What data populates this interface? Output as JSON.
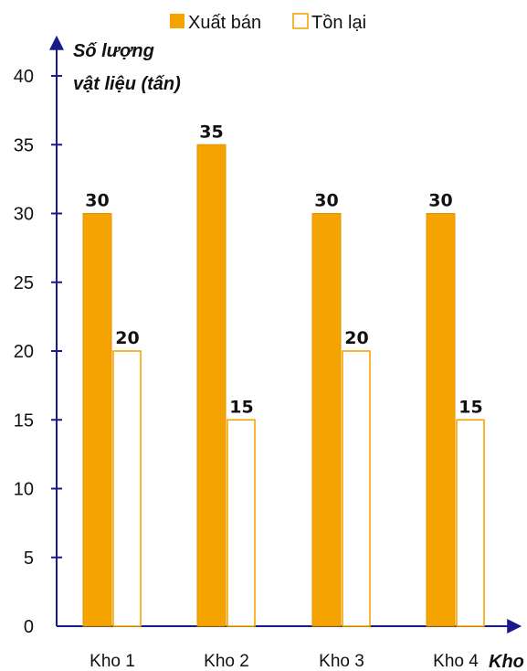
{
  "chart_data": {
    "type": "bar",
    "categories": [
      "Kho 1",
      "Kho 2",
      "Kho 3",
      "Kho 4"
    ],
    "series": [
      {
        "name": "Xuất bán",
        "values": [
          30,
          35,
          30,
          30
        ],
        "color": "#f5a300",
        "style": "filled"
      },
      {
        "name": "Tồn lại",
        "values": [
          20,
          15,
          20,
          15
        ],
        "color": "#f5a300",
        "style": "outline"
      }
    ],
    "ylabel_lines": [
      "Số lượng",
      "vật liệu (tấn)"
    ],
    "xlabel": "Kho",
    "ylim": [
      0,
      40
    ],
    "yticks": [
      0,
      5,
      10,
      15,
      20,
      25,
      30,
      35,
      40
    ],
    "legend_position": "top",
    "grid": false
  }
}
